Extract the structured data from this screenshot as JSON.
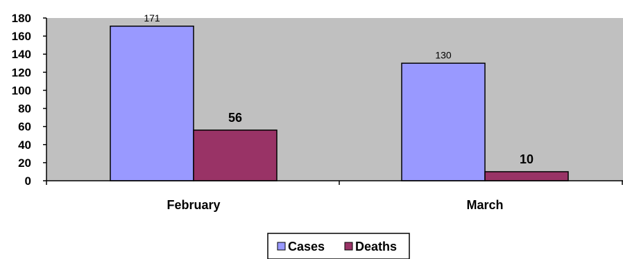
{
  "chart_data": {
    "type": "bar",
    "categories": [
      "February",
      "March"
    ],
    "series": [
      {
        "name": "Cases",
        "values": [
          171,
          130
        ],
        "color": "#9999ff"
      },
      {
        "name": "Deaths",
        "values": [
          56,
          10
        ],
        "color": "#993366"
      }
    ],
    "ylim": [
      0,
      180
    ],
    "yticks": [
      "0",
      "20",
      "40",
      "60",
      "80",
      "100",
      "120",
      "140",
      "160",
      "180"
    ],
    "data_labels": [
      [
        "171",
        "130"
      ],
      [
        "56",
        "10"
      ]
    ],
    "plot_background": "#c0c0c0",
    "grid": false,
    "legend_position": "bottom"
  }
}
